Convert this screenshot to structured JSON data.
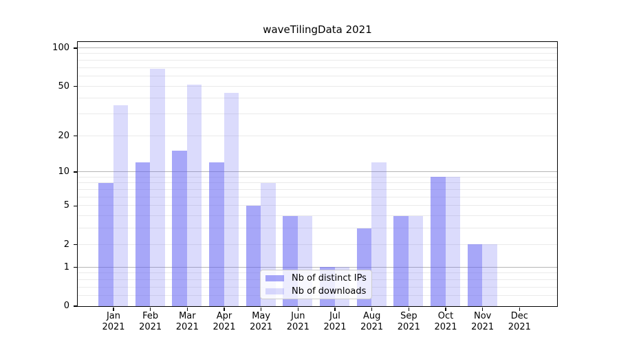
{
  "chart_data": {
    "type": "bar",
    "title": "waveTilingData 2021",
    "categories": [
      "Jan 2021",
      "Feb 2021",
      "Mar 2021",
      "Apr 2021",
      "May 2021",
      "Jun 2021",
      "Jul 2021",
      "Aug 2021",
      "Sep 2021",
      "Oct 2021",
      "Nov 2021",
      "Dec 2021"
    ],
    "series": [
      {
        "name": "Nb of distinct IPs",
        "color": "rgba(98,98,242,0.56)",
        "values": [
          8,
          12,
          15,
          12,
          5,
          4,
          1,
          3,
          4,
          9,
          2,
          0
        ]
      },
      {
        "name": "Nb of downloads",
        "color": "rgba(98,98,242,0.23)",
        "values": [
          35,
          68,
          51,
          44,
          8,
          4,
          1,
          12,
          4,
          9,
          2,
          0
        ]
      }
    ],
    "scale": "log1p",
    "y_ticks": [
      0,
      1,
      2,
      5,
      10,
      20,
      50,
      100
    ],
    "ylim": [
      0,
      112
    ],
    "grid": true,
    "legend_position": "lower center",
    "colors": {
      "bar_dark": "rgba(98,98,242,0.56)",
      "bar_light": "rgba(98,98,242,0.23)",
      "grid_major": "#b5b5b5",
      "grid_minor": "#eaeaea",
      "axis": "#000000"
    }
  }
}
